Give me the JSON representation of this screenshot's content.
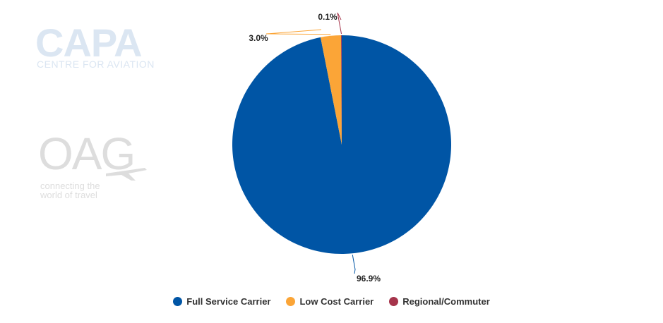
{
  "watermarks": {
    "capa_logo": "CAPA",
    "capa_subtitle": "CENTRE FOR AVIATION",
    "oag_logo": "OAG",
    "oag_tagline_1": "connecting the",
    "oag_tagline_2": "world of travel"
  },
  "chart_data": {
    "type": "pie",
    "title": "",
    "slices": [
      {
        "label": "Full Service Carrier",
        "value": 96.9,
        "display": "96.9%",
        "color": "#0055a5"
      },
      {
        "label": "Low Cost Carrier",
        "value": 3.0,
        "display": "3.0%",
        "color": "#fba537"
      },
      {
        "label": "Regional/Commuter",
        "value": 0.1,
        "display": "0.1%",
        "color": "#a5344b"
      }
    ],
    "start_angle_deg": 0,
    "direction": "clockwise",
    "legend_position": "bottom"
  }
}
